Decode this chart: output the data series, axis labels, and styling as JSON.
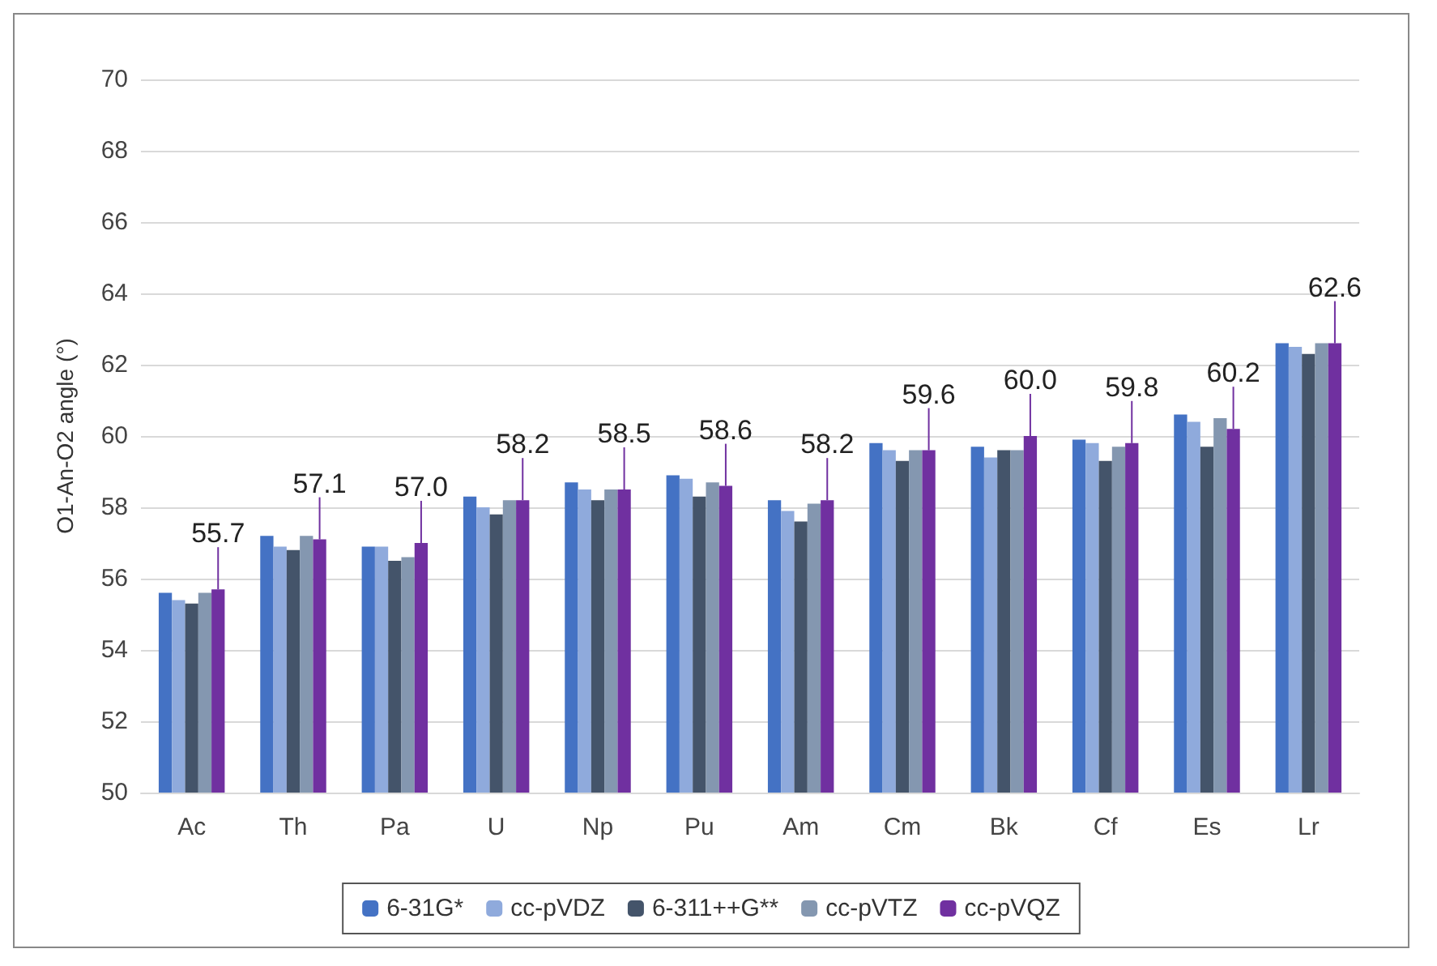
{
  "chart_data": {
    "type": "bar",
    "ylabel": "O1-An-O2 angle (°)",
    "categories": [
      "Ac",
      "Th",
      "Pa",
      "U",
      "Np",
      "Pu",
      "Am",
      "Cm",
      "Bk",
      "Cf",
      "Es",
      "Lr"
    ],
    "series": [
      {
        "name": "6-31G*",
        "color": "#4472c4",
        "values": [
          55.6,
          57.2,
          56.9,
          58.3,
          58.7,
          58.9,
          58.2,
          59.8,
          59.7,
          59.9,
          60.6,
          62.6
        ]
      },
      {
        "name": "cc-pVDZ",
        "color": "#8faadc",
        "values": [
          55.4,
          56.9,
          56.9,
          58.0,
          58.5,
          58.8,
          57.9,
          59.6,
          59.4,
          59.8,
          60.4,
          62.5
        ]
      },
      {
        "name": "6-311++G**",
        "color": "#44546a",
        "values": [
          55.3,
          56.8,
          56.5,
          57.8,
          58.2,
          58.3,
          57.6,
          59.3,
          59.6,
          59.3,
          59.7,
          62.3
        ]
      },
      {
        "name": "cc-pVTZ",
        "color": "#8497b0",
        "values": [
          55.6,
          57.2,
          56.6,
          58.2,
          58.5,
          58.7,
          58.1,
          59.6,
          59.6,
          59.7,
          60.5,
          62.6
        ]
      },
      {
        "name": "cc-pVQZ",
        "color": "#7030a0",
        "values": [
          55.7,
          57.1,
          57.0,
          58.2,
          58.5,
          58.6,
          58.2,
          59.6,
          60.0,
          59.8,
          60.2,
          62.6
        ],
        "value_labels": [
          "55.7",
          "57.1",
          "57.0",
          "58.2",
          "58.5",
          "58.6",
          "58.2",
          "59.6",
          "60.0",
          "59.8",
          "60.2",
          "62.6"
        ]
      }
    ],
    "ylim": [
      50,
      70
    ],
    "yticks": [
      50,
      52,
      54,
      56,
      58,
      60,
      62,
      64,
      66,
      68,
      70
    ],
    "grid": "y",
    "legend": "bottom"
  }
}
